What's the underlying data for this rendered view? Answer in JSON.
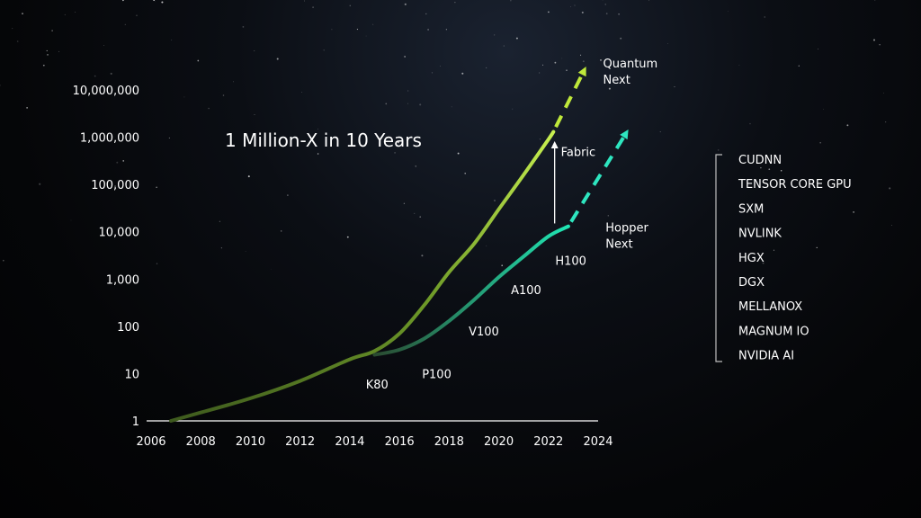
{
  "chart_data": {
    "type": "line",
    "title": "1 Million-X in 10 Years",
    "xlabel": "",
    "ylabel": "",
    "scale_y": "log",
    "xlim": [
      2006,
      2024
    ],
    "ylim": [
      1,
      10000000
    ],
    "grid": false,
    "x_ticks": [
      "2006",
      "2008",
      "2010",
      "2012",
      "2014",
      "2016",
      "2018",
      "2020",
      "2022",
      "2024"
    ],
    "y_ticks": [
      "1",
      "10",
      "100",
      "1,000",
      "10,000",
      "100,000",
      "1,000,000",
      "10,000,000"
    ],
    "series": [
      {
        "name": "",
        "color_start": "#3e5a1e",
        "color_end": "#c8f050",
        "points": [
          [
            2006.8,
            1
          ],
          [
            2008,
            1.5
          ],
          [
            2010,
            3
          ],
          [
            2012,
            7
          ],
          [
            2014,
            20
          ],
          [
            2015,
            30
          ],
          [
            2016,
            70
          ],
          [
            2017,
            280
          ],
          [
            2018,
            1400
          ],
          [
            2019,
            5500
          ],
          [
            2020,
            30000
          ],
          [
            2021,
            160000
          ],
          [
            2022,
            900000
          ],
          [
            2022.2,
            1300000
          ]
        ],
        "extension": {
          "points": [
            [
              2022.2,
              1300000
            ],
            [
              2023.5,
              30000000
            ]
          ],
          "dashed": true,
          "color": "#bfe83a"
        }
      },
      {
        "name": "",
        "color_start": "#2a4a30",
        "color_end": "#20e6b4",
        "points": [
          [
            2015,
            25
          ],
          [
            2016,
            32
          ],
          [
            2017,
            55
          ],
          [
            2018,
            130
          ],
          [
            2019,
            360
          ],
          [
            2020,
            1100
          ],
          [
            2021,
            3000
          ],
          [
            2022,
            8000
          ],
          [
            2022.8,
            13000
          ]
        ],
        "extension": {
          "points": [
            [
              2022.8,
              13000
            ],
            [
              2025.2,
              1400000
            ]
          ],
          "dashed": true,
          "color": "#2ee6c0"
        }
      }
    ],
    "point_labels": [
      {
        "label": "K80",
        "x": 2015.1,
        "y": 6
      },
      {
        "label": "P100",
        "x": 2017.5,
        "y": 10
      },
      {
        "label": "V100",
        "x": 2019.4,
        "y": 80
      },
      {
        "label": "A100",
        "x": 2021.1,
        "y": 600
      },
      {
        "label": "H100",
        "x": 2022.9,
        "y": 2500
      }
    ],
    "annotations": [
      {
        "id": "quantum",
        "lines": [
          "Quantum",
          "Next"
        ],
        "x": 2024.2,
        "y": 30000000
      },
      {
        "id": "hopper",
        "lines": [
          "Hopper",
          "Next"
        ],
        "x": 2024.3,
        "y": 10000
      },
      {
        "id": "fabric",
        "lines": [
          "Fabric"
        ],
        "x": 2022.5,
        "y": 400000
      }
    ],
    "fabric_arrow": {
      "x": 2022.25,
      "y_from": 15000,
      "y_to": 900000
    }
  },
  "stack_list": {
    "items": [
      "CUDNN",
      "TENSOR CORE GPU",
      "SXM",
      "NVLINK",
      "HGX",
      "DGX",
      "MELLANOX",
      "MAGNUM IO",
      "NVIDIA AI"
    ]
  },
  "colors": {
    "text": "#ffffff",
    "axis": "#ffffff",
    "bracket": "#bfbfbf"
  }
}
